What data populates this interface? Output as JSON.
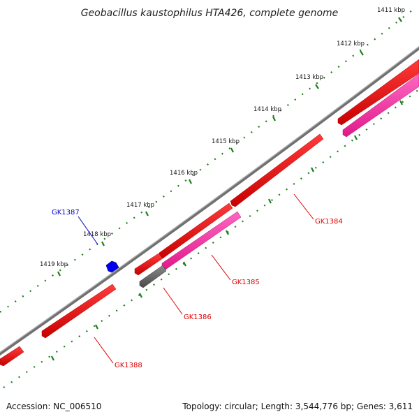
{
  "title": "Geobacillus kaustophilus HTA426, complete genome",
  "footer": {
    "accession": "Accession: NC_006510",
    "topology": "Topology: circular; Length: 3,544,776 bp; Genes: 3,611"
  },
  "ticks": [
    "1411 kbp",
    "1412 kbp",
    "1413 kbp",
    "1414 kbp",
    "1415 kbp",
    "1416 kbp",
    "1417 kbp",
    "1418 kbp",
    "1419 kbp"
  ],
  "genes": [
    {
      "id": "GK1384",
      "color": "#dd0000"
    },
    {
      "id": "GK1385",
      "color": "#dd0000"
    },
    {
      "id": "GK1386",
      "color": "#dd0000"
    },
    {
      "id": "GK1387",
      "color": "#0000cc"
    },
    {
      "id": "GK1388",
      "color": "#dd0000"
    }
  ],
  "colors": {
    "backbone": "#888888",
    "cds": "#ff0000",
    "rna": "#ff2a9a",
    "pseudo": "#707070",
    "blue": "#0000ee",
    "tick": "#1a7f1a"
  }
}
